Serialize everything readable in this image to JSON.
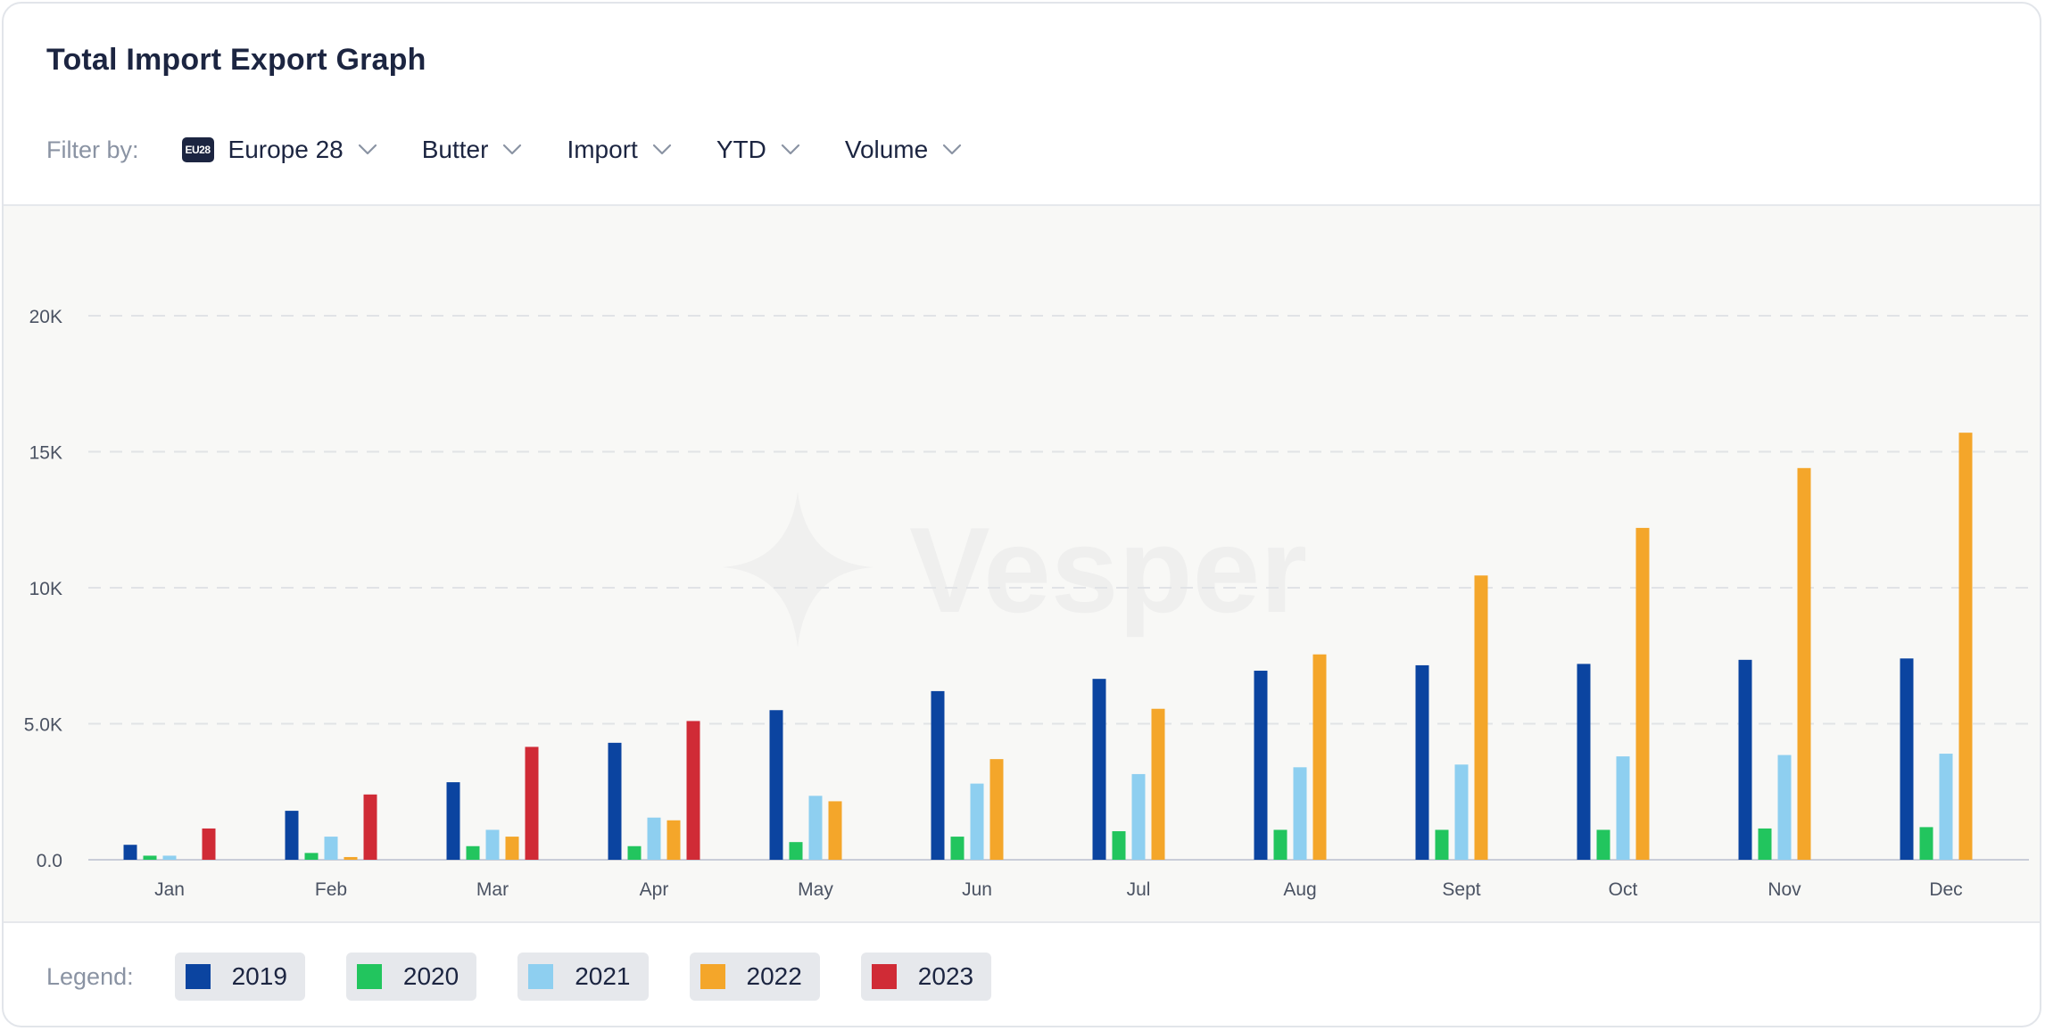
{
  "title": "Total Import Export Graph",
  "filters": {
    "label": "Filter by:",
    "region_badge": "EU28",
    "items": [
      {
        "name": "region",
        "value": "Europe 28"
      },
      {
        "name": "product",
        "value": "Butter"
      },
      {
        "name": "flow",
        "value": "Import"
      },
      {
        "name": "period",
        "value": "YTD"
      },
      {
        "name": "measure",
        "value": "Volume"
      }
    ]
  },
  "watermark": "Vesper",
  "legend": {
    "label": "Legend:"
  },
  "chart_data": {
    "type": "bar",
    "categories": [
      "Jan",
      "Feb",
      "Mar",
      "Apr",
      "May",
      "Jun",
      "Jul",
      "Aug",
      "Sept",
      "Oct",
      "Nov",
      "Dec"
    ],
    "ylim": [
      0,
      24000
    ],
    "yticks": [
      0,
      5000,
      10000,
      15000,
      20000
    ],
    "ytick_labels": [
      "0.0",
      "5.0K",
      "10K",
      "15K",
      "20K"
    ],
    "grid": true,
    "legend_position": "bottom",
    "series": [
      {
        "name": "2019",
        "color": "#0b44a0",
        "values": [
          550,
          1800,
          2850,
          4300,
          5500,
          6200,
          6650,
          6950,
          7150,
          7200,
          7350,
          7400
        ]
      },
      {
        "name": "2020",
        "color": "#22c55e",
        "values": [
          150,
          250,
          500,
          500,
          650,
          850,
          1050,
          1100,
          1100,
          1100,
          1150,
          1200
        ]
      },
      {
        "name": "2021",
        "color": "#8ecff0",
        "values": [
          150,
          850,
          1100,
          1550,
          2350,
          2800,
          3150,
          3400,
          3500,
          3800,
          3850,
          3900
        ]
      },
      {
        "name": "2022",
        "color": "#f4a62a",
        "values": [
          0,
          100,
          850,
          1450,
          2150,
          3700,
          5550,
          7550,
          10450,
          12200,
          14400,
          15700
        ]
      },
      {
        "name": "2023",
        "color": "#d02b36",
        "values": [
          1150,
          2400,
          4150,
          5100,
          null,
          null,
          null,
          null,
          null,
          null,
          null,
          null
        ]
      }
    ]
  }
}
